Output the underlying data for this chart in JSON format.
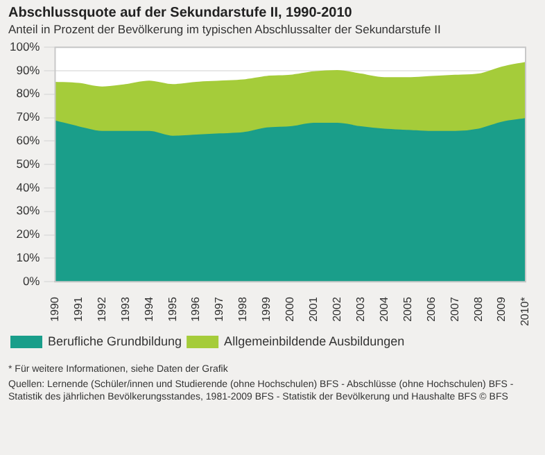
{
  "chart_data": {
    "type": "area",
    "title": "Abschlussquote auf der Sekundarstufe II, 1990-2010",
    "subtitle": "Anteil in Prozent der Bevölkerung im typischen Abschlussalter der Sekundarstufe II",
    "categories": [
      "1990",
      "1991",
      "1992",
      "1993",
      "1994",
      "1995",
      "1996",
      "1997",
      "1998",
      "1999",
      "2000",
      "2001",
      "2002",
      "2003",
      "2004",
      "2005",
      "2006",
      "2007",
      "2008",
      "2009",
      "2010*"
    ],
    "stacked": true,
    "series": [
      {
        "name": "Berufliche Grundbildung",
        "color": "#1a9e8a",
        "values": [
          68.5,
          66,
          64,
          64,
          64,
          62,
          62.5,
          63,
          63.5,
          65.5,
          66,
          67.5,
          67.5,
          66,
          65,
          64.5,
          64,
          64,
          65,
          68,
          69.5
        ]
      },
      {
        "name": "Allgemeinbildende Ausbildungen",
        "color": "#a5cc3a",
        "values": [
          16.5,
          18.5,
          19,
          20,
          21.5,
          22,
          22.5,
          22.5,
          22.5,
          22,
          22,
          22,
          22.5,
          22.5,
          22,
          22.5,
          23.5,
          24,
          23.5,
          23.5,
          24
        ]
      }
    ],
    "ylim": [
      0,
      100
    ],
    "yticks": [
      {
        "value": 0,
        "label": "0%"
      },
      {
        "value": 10,
        "label": "10%"
      },
      {
        "value": 20,
        "label": "20%"
      },
      {
        "value": 30,
        "label": "30%"
      },
      {
        "value": 40,
        "label": "40%"
      },
      {
        "value": 50,
        "label": "50%"
      },
      {
        "value": 60,
        "label": "60%"
      },
      {
        "value": 70,
        "label": "70%"
      },
      {
        "value": 80,
        "label": "80%"
      },
      {
        "value": 90,
        "label": "90%"
      },
      {
        "value": 100,
        "label": "100%"
      }
    ],
    "grid": "y",
    "legend": "bottom",
    "marker": "none",
    "annotations": [
      "* Für weitere Informationen, siehe Daten der Grafik",
      "Quellen: Lernende (Schüler/innen und Studierende (ohne Hochschulen) BFS - Abschlüsse (ohne Hochschulen) BFS - Statistik des jährlichen Bevölkerungsstandes, 1981-2009 BFS - Statistik der Bevölkerung und Haushalte BFS   © BFS"
    ]
  }
}
